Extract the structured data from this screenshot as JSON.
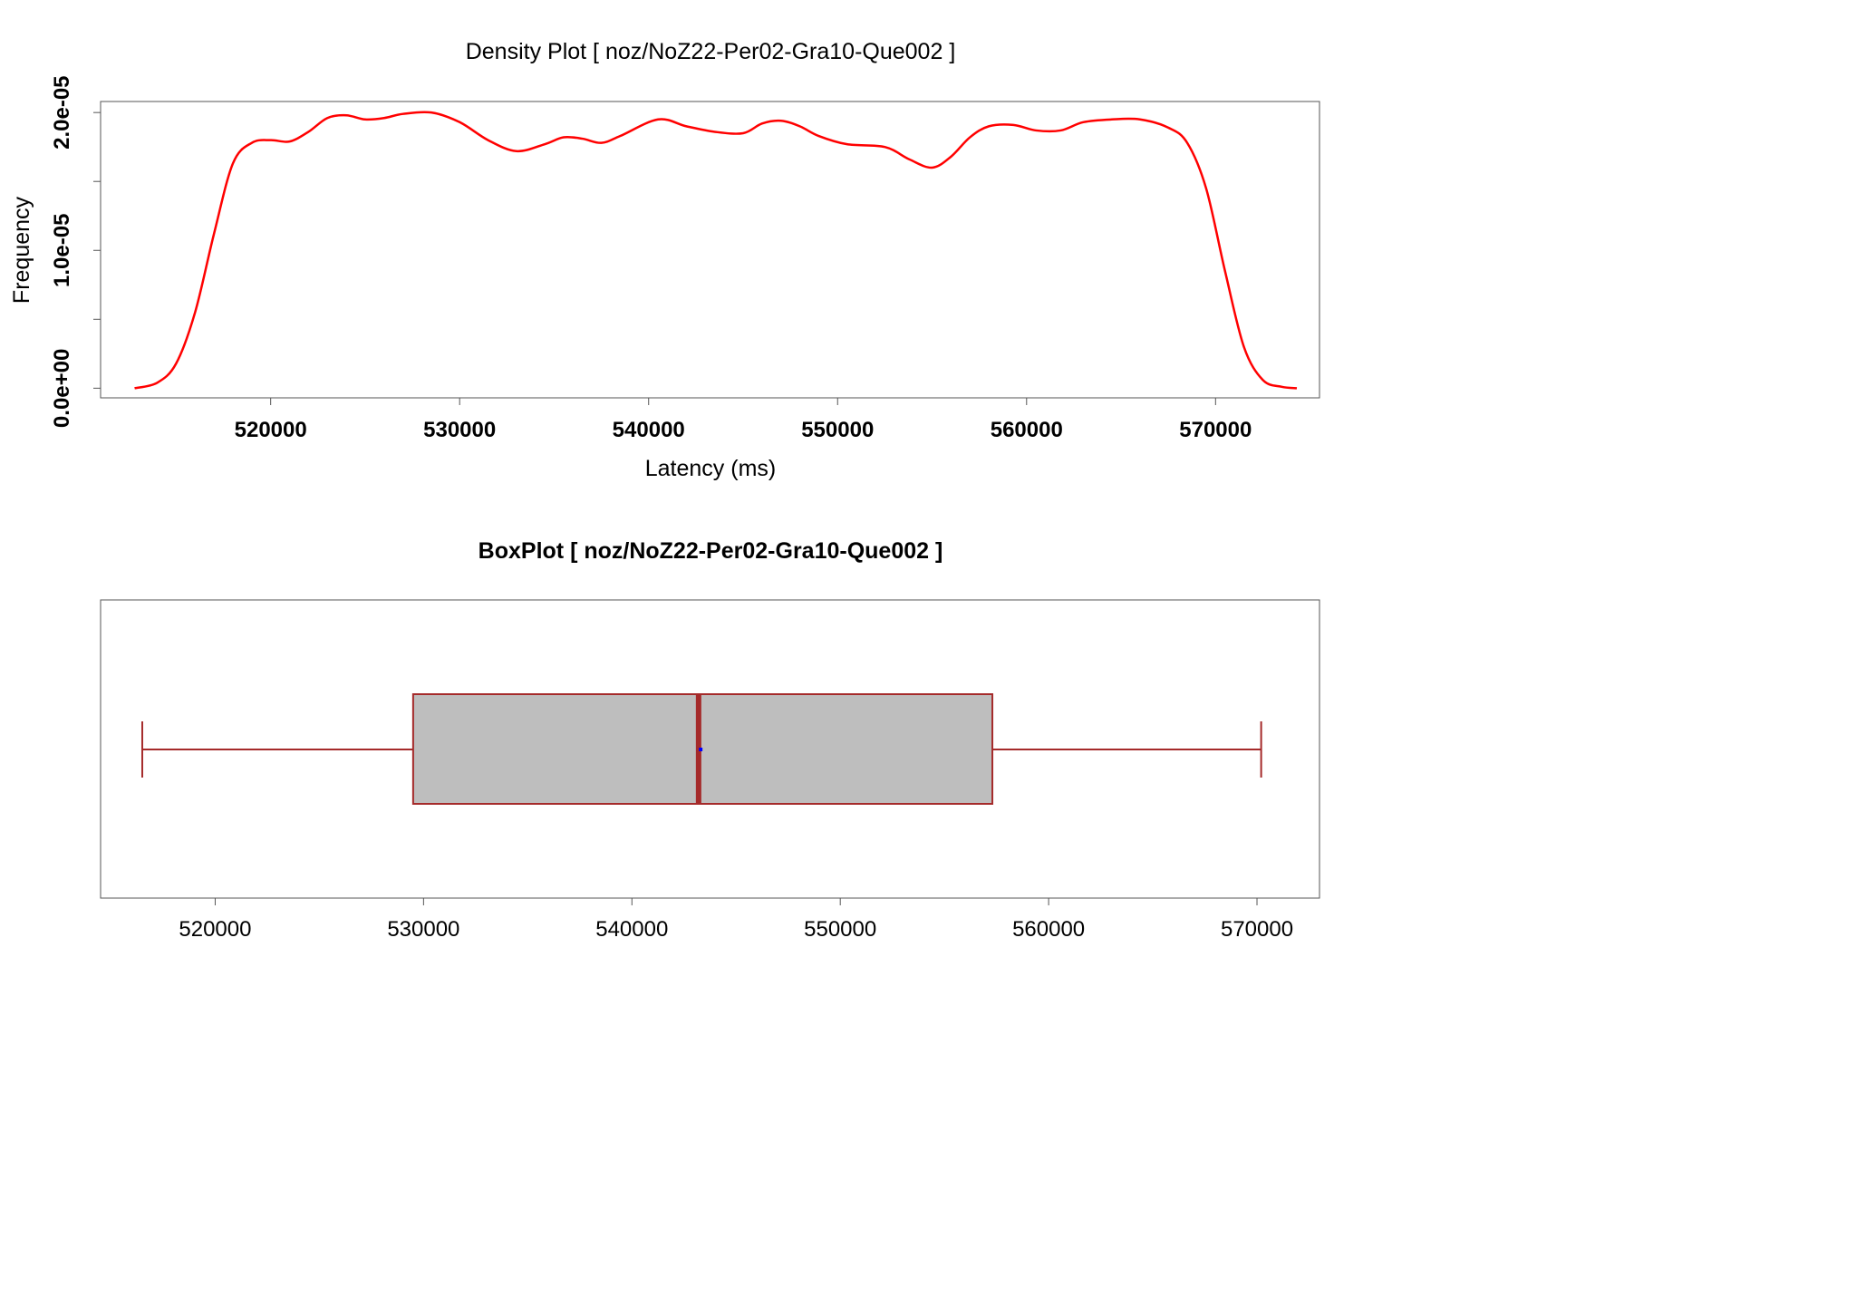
{
  "chart_data": [
    {
      "type": "line",
      "title": "Density Plot [ noz/NoZ22-Per02-Gra10-Que002 ]",
      "xlabel": "Latency (ms)",
      "ylabel": "Frequency",
      "xlim": [
        511000,
        575500
      ],
      "ylim": [
        -7e-07,
        2.08e-05
      ],
      "x_ticks": [
        520000,
        530000,
        540000,
        550000,
        560000,
        570000
      ],
      "x_tick_labels": [
        "520000",
        "530000",
        "540000",
        "550000",
        "560000",
        "570000"
      ],
      "y_ticks": [
        0,
        5e-06,
        1e-05,
        1.5e-05,
        2e-05
      ],
      "y_tick_labels": [
        "0.0e+00",
        "",
        "1.0e-05",
        "",
        "2.0e-05"
      ],
      "grid": false,
      "series": [
        {
          "color": "#ff0000",
          "x": [
            512800,
            514000,
            515000,
            516000,
            517000,
            518000,
            519000,
            520000,
            521000,
            522000,
            523000,
            524000,
            525000,
            526000,
            527000,
            528500,
            530000,
            531500,
            533000,
            534500,
            535500,
            536500,
            537500,
            538500,
            540500,
            542000,
            543500,
            545000,
            546000,
            547000,
            548000,
            549000,
            550500,
            552500,
            553800,
            555000,
            556000,
            557000,
            558000,
            559300,
            560500,
            561800,
            563000,
            564500,
            566000,
            567500,
            568500,
            569500,
            570500,
            571500,
            572500,
            573500,
            574300
          ],
          "y": [
            0.0,
            4e-07,
            1.8e-06,
            5.5e-06,
            1.12e-05,
            1.63e-05,
            1.78e-05,
            1.8e-05,
            1.79e-05,
            1.86e-05,
            1.96e-05,
            1.98e-05,
            1.95e-05,
            1.96e-05,
            1.99e-05,
            2e-05,
            1.93e-05,
            1.8e-05,
            1.72e-05,
            1.77e-05,
            1.82e-05,
            1.81e-05,
            1.78e-05,
            1.83e-05,
            1.95e-05,
            1.9e-05,
            1.86e-05,
            1.85e-05,
            1.92e-05,
            1.94e-05,
            1.9e-05,
            1.83e-05,
            1.77e-05,
            1.75e-05,
            1.66e-05,
            1.6e-05,
            1.68e-05,
            1.82e-05,
            1.9e-05,
            1.91e-05,
            1.87e-05,
            1.87e-05,
            1.93e-05,
            1.95e-05,
            1.95e-05,
            1.89e-05,
            1.78e-05,
            1.45e-05,
            8.5e-06,
            3e-06,
            6e-07,
            1e-07,
            0.0
          ]
        }
      ]
    },
    {
      "type": "box",
      "title": "BoxPlot [ noz/NoZ22-Per02-Gra10-Que002 ]",
      "xlim": [
        514500,
        573000
      ],
      "x_ticks": [
        520000,
        530000,
        540000,
        550000,
        560000,
        570000
      ],
      "x_tick_labels": [
        "520000",
        "530000",
        "540000",
        "550000",
        "560000",
        "570000"
      ],
      "grid": false,
      "whisker_low": 516500,
      "q1": 529500,
      "median": 543200,
      "mean": 543300,
      "q3": 557300,
      "whisker_high": 570200,
      "box_color": "#bebebe",
      "line_color": "#a52a2a",
      "mean_color": "#0000ff"
    }
  ]
}
